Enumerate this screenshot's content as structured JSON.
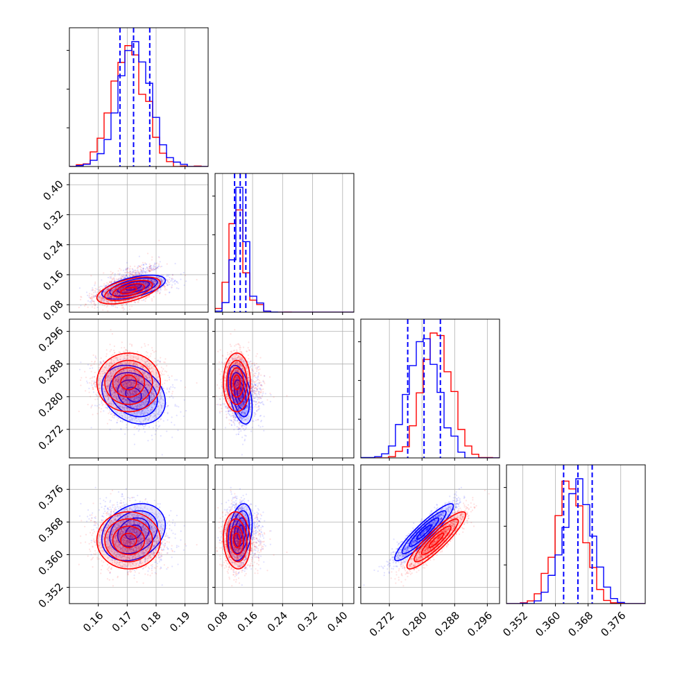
{
  "chart_data": {
    "type": "corner",
    "series": [
      {
        "name": "",
        "color": "#0000ff",
        "mean": [
          0.1722,
          0.127,
          0.2805,
          0.3655
        ],
        "sd": [
          0.0055,
          0.016,
          0.0036,
          0.0035
        ],
        "quantiles": [
          [
            0.1675,
            0.1722,
            0.1778
          ],
          [
            0.112,
            0.127,
            0.142
          ],
          [
            0.2765,
            0.2805,
            0.2845
          ],
          [
            0.362,
            0.3655,
            0.369
          ]
        ],
        "corr": {
          "0-1": 0.55,
          "0-2": -0.25,
          "0-3": 0.25,
          "1-2": -0.45,
          "1-3": 0.3,
          "2-3": 0.92
        }
      },
      {
        "name": "",
        "color": "#ff0000",
        "mean": [
          0.1705,
          0.118,
          0.2835,
          0.3635
        ],
        "sd": [
          0.0055,
          0.018,
          0.0036,
          0.0035
        ],
        "quantiles": [],
        "corr": {
          "0-1": 0.55,
          "0-2": 0.0,
          "0-3": 0.0,
          "1-2": 0.0,
          "1-3": -0.1,
          "2-3": 0.9
        }
      }
    ],
    "axes": [
      {
        "range": [
          0.15,
          0.198
        ],
        "ticks": [
          "0.16",
          "0.17",
          "0.18",
          "0.19"
        ],
        "tick_values": [
          0.16,
          0.17,
          0.18,
          0.19
        ]
      },
      {
        "range": [
          0.06,
          0.43
        ],
        "ticks": [
          "0.08",
          "0.16",
          "0.24",
          "0.32",
          "0.40"
        ],
        "tick_values": [
          0.08,
          0.16,
          0.24,
          0.32,
          0.4
        ]
      },
      {
        "range": [
          0.265,
          0.299
        ],
        "ticks": [
          "0.272",
          "0.280",
          "0.288",
          "0.296"
        ],
        "tick_values": [
          0.272,
          0.28,
          0.288,
          0.296
        ]
      },
      {
        "range": [
          0.348,
          0.382
        ],
        "ticks": [
          "0.352",
          "0.360",
          "0.368",
          "0.376"
        ],
        "tick_values": [
          0.352,
          0.36,
          0.368,
          0.376
        ]
      }
    ],
    "quantile_line_color": "#0000ff",
    "grid": true,
    "legend": "none"
  }
}
